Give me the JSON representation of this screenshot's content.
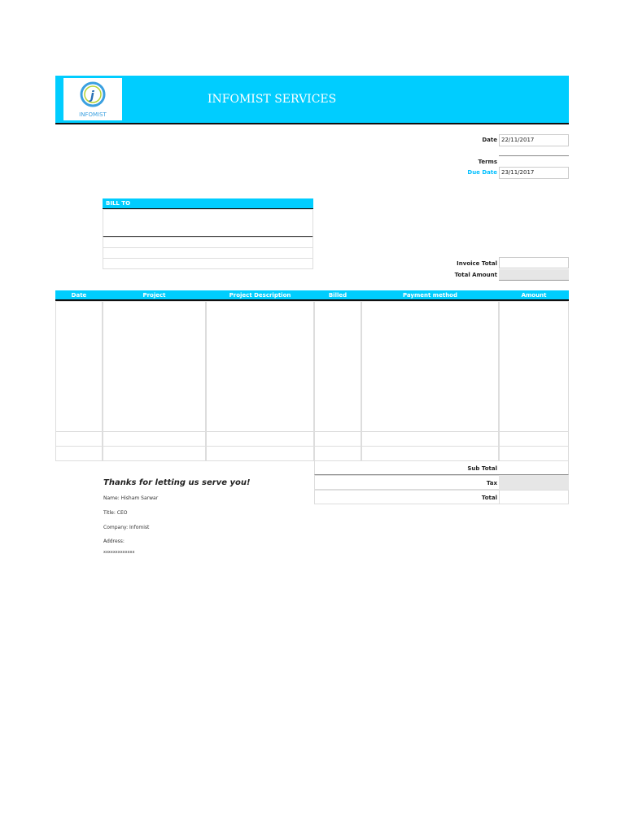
{
  "header": {
    "company": "INFOMIST SERVICES",
    "logo_text": "INFOMIST"
  },
  "meta": {
    "date_label": "Date",
    "date": "22/11/2017",
    "terms_label": "Terms",
    "terms": "",
    "due_label": "Due Date",
    "due": "23/11/2017",
    "due_color": "#00bfff"
  },
  "bill_to": {
    "label": "BILL TO"
  },
  "totals_top": {
    "invoice_total_label": "Invoice Total",
    "total_amount_label": "Total Amount"
  },
  "table": {
    "columns": [
      "Date",
      "Project",
      "Project Description",
      "Billed",
      "Payment method",
      "Amount"
    ]
  },
  "summary": {
    "subtotal": "Sub Total",
    "tax": "Tax",
    "total": "Total"
  },
  "footer": {
    "thanks": "Thanks for letting us serve you!",
    "name": "Name: Hisham Sarwar",
    "title": "Title: CEO",
    "company": "Company: Infomist",
    "address_label": "Address:",
    "address": "xxxxxxxxxxxxx"
  },
  "accent": "#00cdff"
}
